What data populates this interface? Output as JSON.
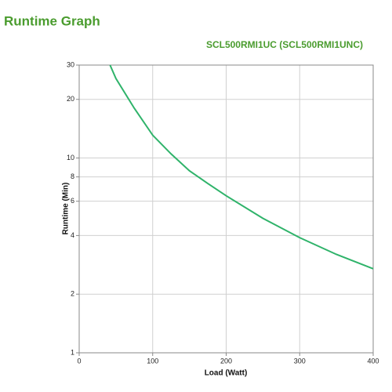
{
  "chart_data": {
    "type": "line",
    "title": "Runtime Graph",
    "subtitle": "SCL500RMI1UC (SCL500RMI1UNC)",
    "x_label": "Load (Watt)",
    "y_label": "Runtime (Min)",
    "x": [
      42,
      50,
      75,
      100,
      125,
      150,
      175,
      200,
      250,
      300,
      350,
      400
    ],
    "series": [
      {
        "name": "Runtime",
        "color": "#2fb36a",
        "values": [
          30,
          25.6,
          18,
          13.1,
          10.5,
          8.6,
          7.4,
          6.4,
          4.9,
          3.9,
          3.2,
          2.7
        ]
      }
    ],
    "xlim": [
      0,
      400
    ],
    "xticks": [
      0,
      100,
      200,
      300,
      400
    ],
    "ylim": [
      1,
      30
    ],
    "yticks": [
      1,
      2,
      4,
      6,
      8,
      10,
      20,
      30
    ],
    "y_scale": "log",
    "grid": true
  }
}
